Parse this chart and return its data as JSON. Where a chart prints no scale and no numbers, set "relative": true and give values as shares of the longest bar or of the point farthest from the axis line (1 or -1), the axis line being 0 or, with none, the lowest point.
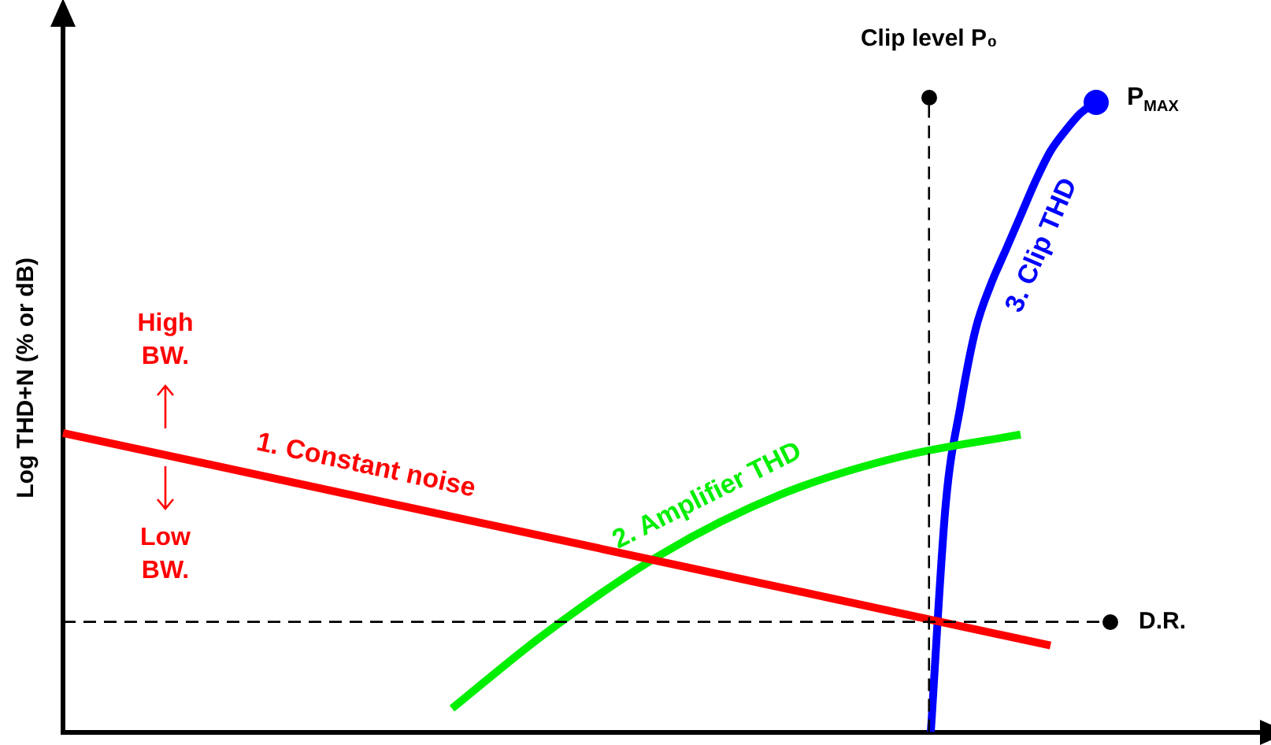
{
  "chart_data": {
    "type": "line",
    "relative": true,
    "ylabel": "Log THD+N (% or dB)",
    "marker": "none",
    "line_style": "solid",
    "grid": false,
    "legend": false,
    "categories": [
      null,
      null,
      null,
      null,
      null,
      null,
      null,
      null,
      null,
      null,
      null,
      null,
      null,
      null,
      null,
      null,
      null,
      null,
      null,
      null,
      null,
      null,
      null,
      null,
      null,
      null,
      null,
      null,
      null,
      null,
      null,
      null,
      null,
      null,
      null,
      null,
      null,
      null,
      null,
      null,
      null,
      null,
      null,
      null,
      null,
      null,
      null,
      null,
      null,
      null,
      null,
      null,
      null,
      null,
      null,
      null,
      null,
      null,
      null,
      null,
      null,
      null,
      null,
      null,
      null,
      null,
      null,
      null,
      null,
      null,
      null,
      null,
      null,
      null,
      null,
      null,
      null,
      null,
      null,
      null,
      null
    ],
    "series": [
      {
        "name": "1. Constant noise",
        "color": "#ff0000",
        "values": [
          0.475,
          null,
          null,
          null,
          null,
          null,
          null,
          null,
          null,
          null,
          null,
          null,
          null,
          null,
          null,
          null,
          null,
          null,
          null,
          null,
          null,
          null,
          null,
          null,
          null,
          null,
          null,
          null,
          null,
          null,
          null,
          null,
          null,
          null,
          null,
          null,
          null,
          null,
          null,
          null,
          null,
          null,
          null,
          null,
          null,
          null,
          null,
          null,
          null,
          null,
          null,
          null,
          null,
          null,
          null,
          null,
          null,
          null,
          null,
          null,
          null,
          null,
          null,
          null,
          null,
          null,
          0.1375,
          null,
          null,
          null,
          null,
          null,
          null,
          null,
          null,
          null,
          null,
          null,
          null,
          null,
          null
        ]
      },
      {
        "name": "2. Amplifier THD",
        "color": "#00ee00",
        "values": [
          null,
          null,
          null,
          null,
          null,
          null,
          null,
          null,
          null,
          null,
          null,
          null,
          null,
          null,
          null,
          null,
          null,
          null,
          null,
          null,
          null,
          null,
          null,
          null,
          null,
          null,
          0.0375,
          null,
          null,
          null,
          null,
          null,
          0.1525,
          null,
          null,
          null,
          null,
          null,
          null,
          null,
          0.2825,
          null,
          null,
          null,
          null,
          null,
          null,
          null,
          0.3775,
          null,
          null,
          null,
          null,
          null,
          null,
          null,
          0.4375,
          null,
          null,
          null,
          null,
          null,
          null,
          null,
          0.4725,
          null,
          null,
          null,
          null,
          null,
          null,
          null,
          null,
          null,
          null,
          null,
          null,
          null,
          null,
          null,
          null
        ]
      },
      {
        "name": "3. Clip THD",
        "color": "#0000ff",
        "values": [
          null,
          null,
          null,
          null,
          null,
          null,
          null,
          null,
          null,
          null,
          null,
          null,
          null,
          null,
          null,
          null,
          null,
          null,
          null,
          null,
          null,
          null,
          null,
          null,
          null,
          null,
          null,
          null,
          null,
          null,
          null,
          null,
          null,
          null,
          null,
          null,
          null,
          null,
          null,
          null,
          null,
          null,
          null,
          null,
          null,
          null,
          null,
          null,
          null,
          null,
          null,
          null,
          null,
          null,
          null,
          null,
          null,
          null,
          0,
          0.3625,
          0.52,
          0.64,
          0.71,
          0.765,
          0.82,
          0.875,
          0.9225,
          0.955,
          0.9825,
          1,
          null,
          null,
          null,
          null,
          null,
          null,
          null,
          null,
          null,
          null,
          null
        ]
      }
    ],
    "ref_lines": [
      {
        "axis": "y",
        "value": 0.175,
        "label": "D.R.",
        "line_style": "dashed",
        "color": "#000000"
      }
    ],
    "annotations": [
      "P$_{MAX}$",
      "High BW.",
      "Low BW.",
      "Clip level P₀"
    ]
  }
}
